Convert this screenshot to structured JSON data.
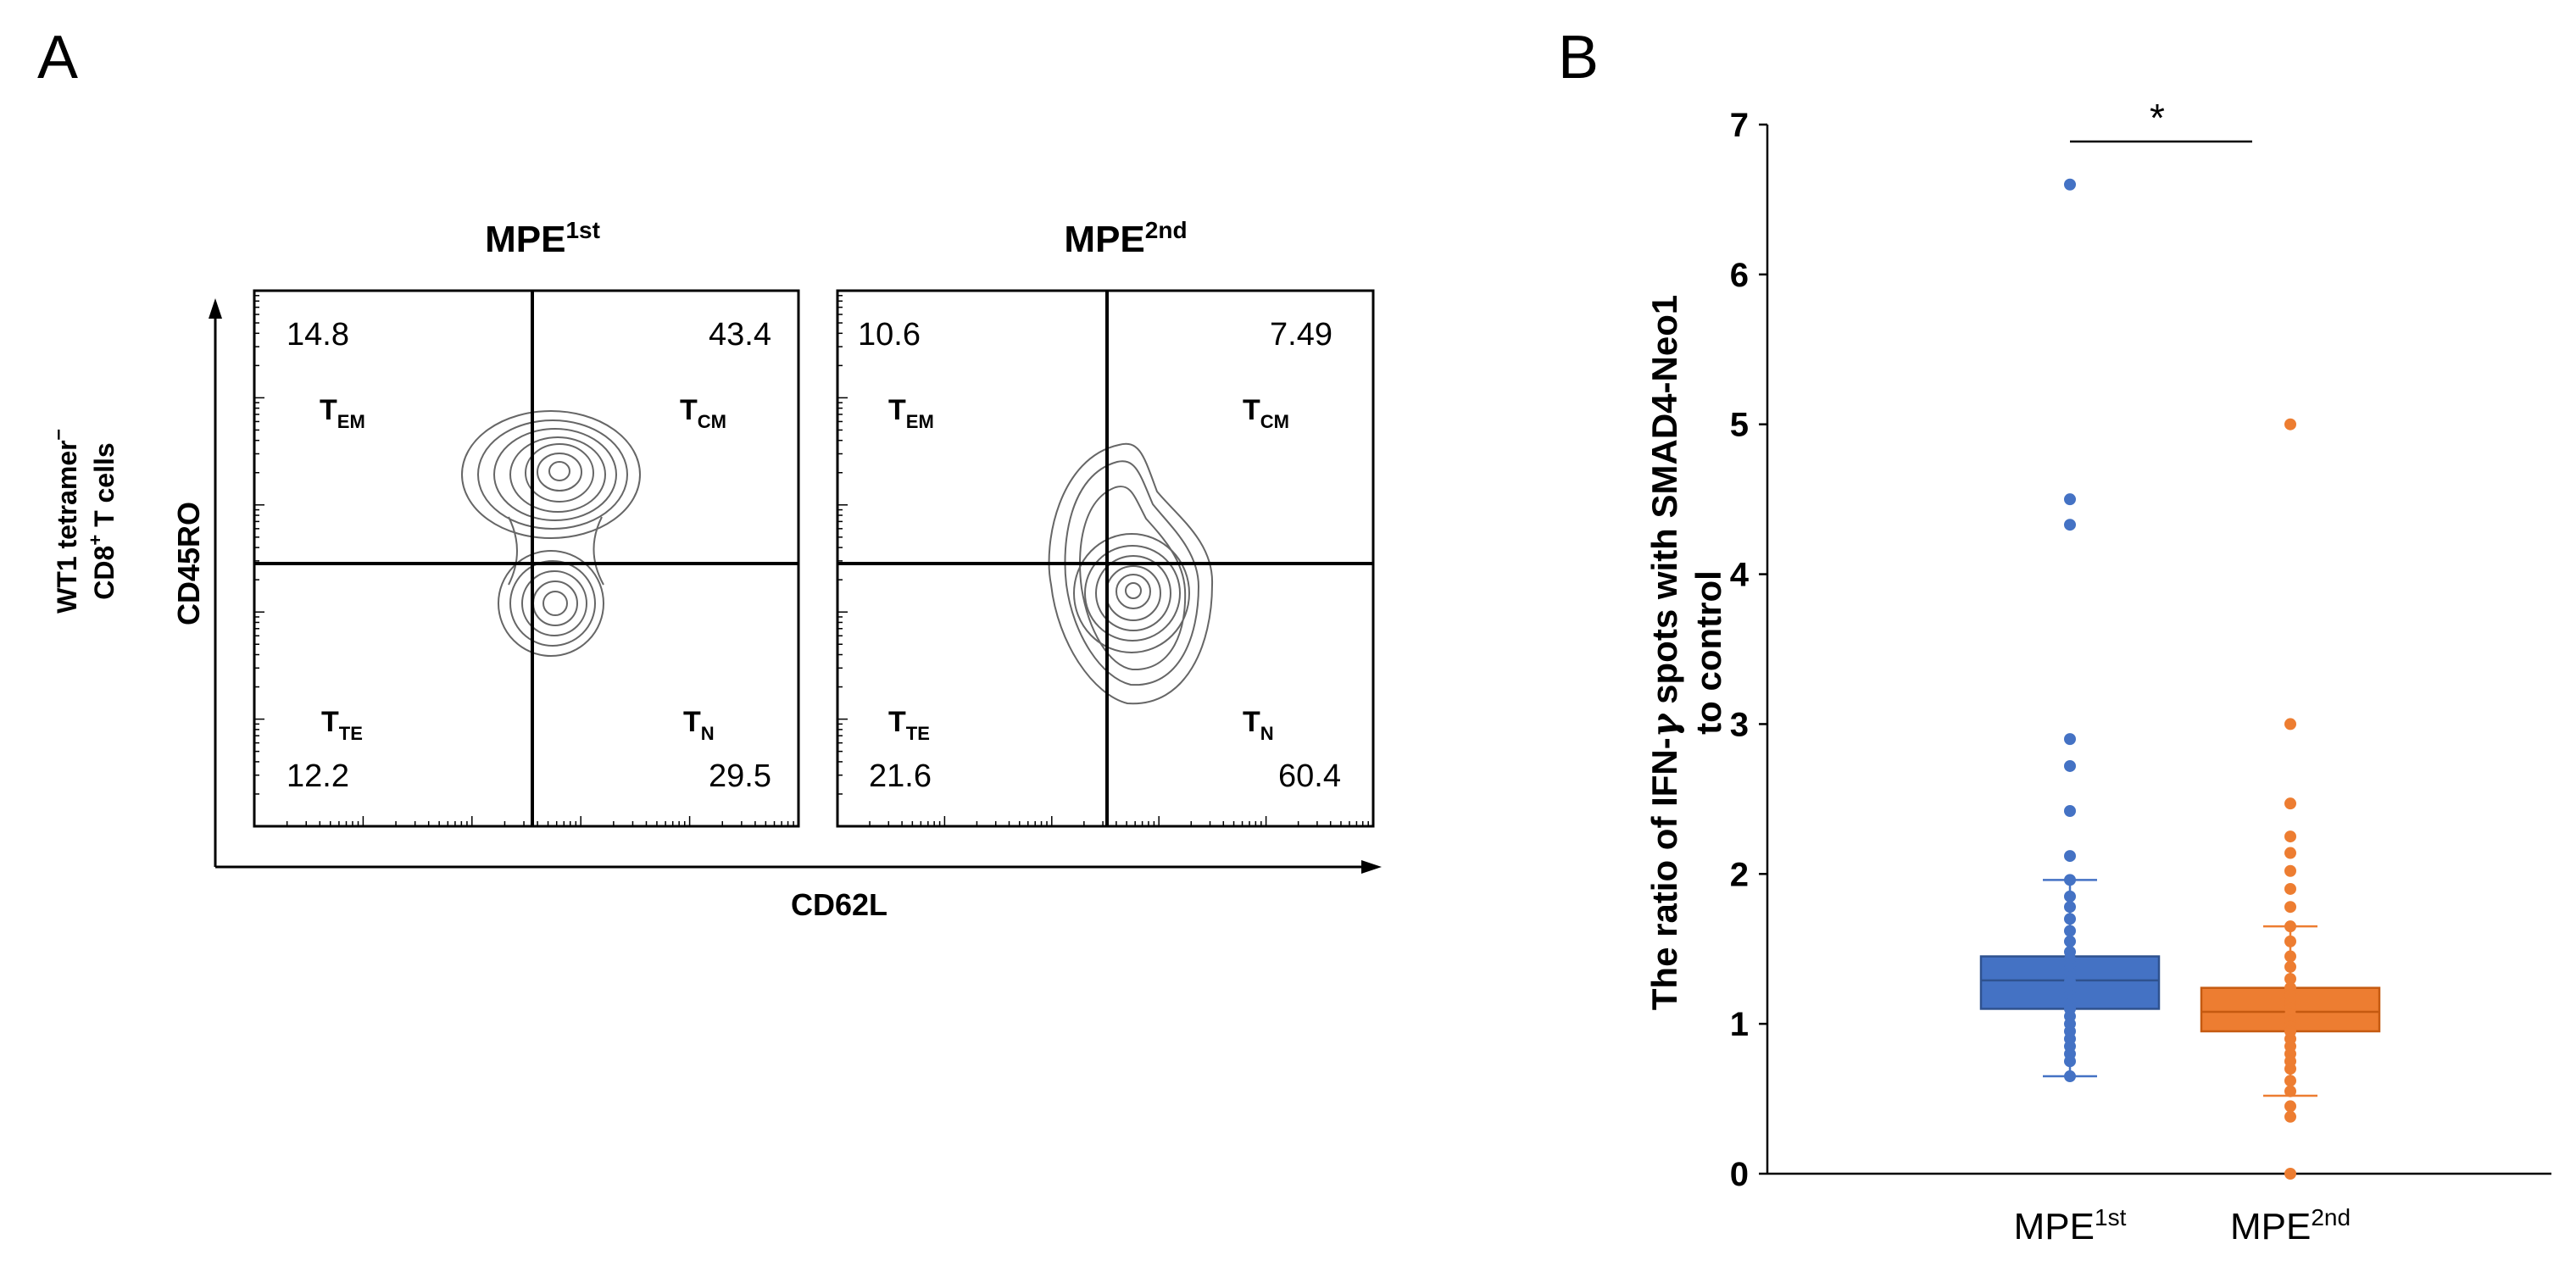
{
  "panel_a": {
    "letter": "A",
    "y_axis_title_line1": "WT1 tetramer",
    "y_axis_title_line1_sup": "–",
    "y_axis_title_line2_a": "CD8",
    "y_axis_title_line2_sup": "+",
    "y_axis_title_line2_b": " T cells",
    "y_axis_marker": "CD45RO",
    "x_axis_marker": "CD62L",
    "plots": [
      {
        "title_main": "MPE",
        "title_sup": "1st",
        "quadrants": {
          "top_left": {
            "value": "14.8",
            "label": "T",
            "sub": "EM"
          },
          "top_right": {
            "value": "43.4",
            "label": "T",
            "sub": "CM"
          },
          "bottom_left": {
            "value": "12.2",
            "label": "T",
            "sub": "TE"
          },
          "bottom_right": {
            "value": "29.5",
            "label": "T",
            "sub": "N"
          }
        }
      },
      {
        "title_main": "MPE",
        "title_sup": "2nd",
        "quadrants": {
          "top_left": {
            "value": "10.6",
            "label": "T",
            "sub": "EM"
          },
          "top_right": {
            "value": "7.49",
            "label": "T",
            "sub": "CM"
          },
          "bottom_left": {
            "value": "21.6",
            "label": "T",
            "sub": "TE"
          },
          "bottom_right": {
            "value": "60.4",
            "label": "T",
            "sub": "N"
          }
        }
      }
    ]
  },
  "panel_b": {
    "letter": "B",
    "significance": "*",
    "chart_data": {
      "type": "box",
      "title": "",
      "ylabel_line1_a": "The ratio of IFN-",
      "ylabel_line1_gamma": "γ",
      "ylabel_line1_b": " spots with SMAD4-Neo1",
      "ylabel_line2": "to control",
      "ylim": [
        0,
        7
      ],
      "yticks": [
        0,
        1,
        2,
        3,
        4,
        5,
        6,
        7
      ],
      "series": [
        {
          "name": "MPE",
          "name_sup": "1st",
          "color": "#4472c4",
          "whisker_low": 0.65,
          "q1": 1.1,
          "median": 1.29,
          "q3": 1.45,
          "whisker_high": 1.96,
          "points": [
            6.6,
            4.5,
            4.33,
            2.9,
            2.72,
            2.42,
            2.12,
            1.96,
            1.85,
            1.78,
            1.7,
            1.62,
            1.55,
            1.48,
            1.43,
            1.4,
            1.37,
            1.34,
            1.31,
            1.28,
            1.25,
            1.22,
            1.19,
            1.16,
            1.13,
            1.1,
            1.05,
            1.0,
            0.95,
            0.9,
            0.85,
            0.8,
            0.75,
            0.65
          ]
        },
        {
          "name": "MPE",
          "name_sup": "2nd",
          "color": "#ed7d31",
          "whisker_low": 0.52,
          "q1": 0.95,
          "median": 1.08,
          "q3": 1.24,
          "whisker_high": 1.65,
          "points": [
            5.0,
            3.0,
            2.47,
            2.25,
            2.14,
            2.02,
            1.9,
            1.78,
            1.65,
            1.55,
            1.45,
            1.38,
            1.3,
            1.24,
            1.19,
            1.14,
            1.1,
            1.06,
            1.02,
            0.98,
            0.95,
            0.9,
            0.85,
            0.8,
            0.75,
            0.7,
            0.62,
            0.55,
            0.45,
            0.38,
            0.0
          ]
        }
      ]
    }
  }
}
